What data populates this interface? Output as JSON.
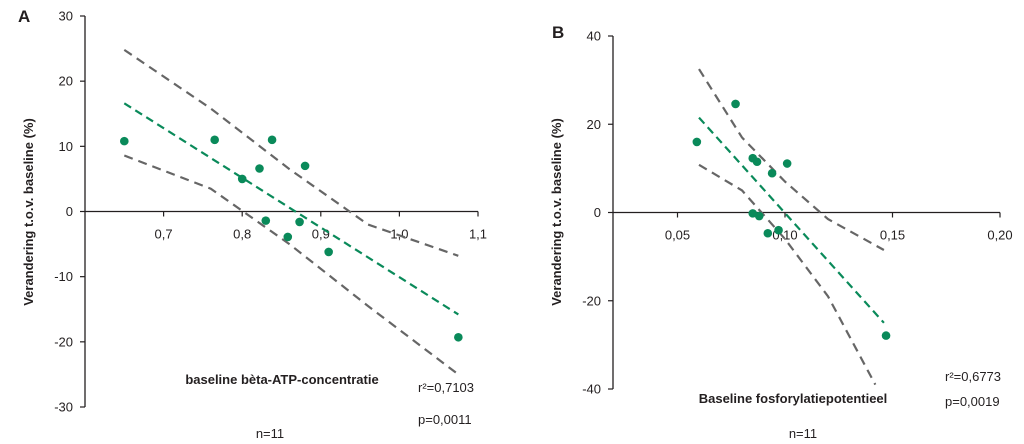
{
  "colors": {
    "point": "#0a8a5a",
    "fit": "#0a8a5a",
    "ci": "#666666",
    "axis": "#231f20"
  },
  "chart_data": [
    {
      "type": "scatter",
      "panel": "A",
      "ylabel": "Verandering t.o.v. baseline (%)",
      "xlabel": "baseline bèta-ATP-concentratie",
      "r2_label": "r²=0,7103",
      "p_label": "p=0,0011",
      "n_label": "n=11",
      "xlim": [
        0.6,
        1.1
      ],
      "ylim": [
        -30,
        30
      ],
      "x_ticks": [
        "0,7",
        "0,8",
        "0,9",
        "1,0",
        "1,1"
      ],
      "x_tick_values": [
        0.7,
        0.8,
        0.9,
        1.0,
        1.1
      ],
      "y_ticks": [
        "30",
        "20",
        "10",
        "0",
        "-10",
        "-20",
        "-30"
      ],
      "y_tick_values": [
        30,
        20,
        10,
        0,
        -10,
        -20,
        -30
      ],
      "points": [
        {
          "x": 0.65,
          "y": 10.8
        },
        {
          "x": 0.765,
          "y": 11.0
        },
        {
          "x": 0.8,
          "y": 5.0
        },
        {
          "x": 0.822,
          "y": 6.6
        },
        {
          "x": 0.838,
          "y": 11.0
        },
        {
          "x": 0.83,
          "y": -1.4
        },
        {
          "x": 0.858,
          "y": -3.9
        },
        {
          "x": 0.873,
          "y": -1.6
        },
        {
          "x": 0.88,
          "y": 7.0
        },
        {
          "x": 0.91,
          "y": -6.2
        },
        {
          "x": 1.075,
          "y": -19.3
        }
      ],
      "fit": [
        {
          "x": 0.65,
          "y": 16.6
        },
        {
          "x": 1.075,
          "y": -15.8
        }
      ],
      "ci_upper": [
        {
          "x": 0.65,
          "y": 24.8
        },
        {
          "x": 0.76,
          "y": 15.8
        },
        {
          "x": 0.86,
          "y": 6.5
        },
        {
          "x": 0.96,
          "y": -2.0
        },
        {
          "x": 1.075,
          "y": -6.8
        }
      ],
      "ci_lower": [
        {
          "x": 0.65,
          "y": 8.6
        },
        {
          "x": 0.76,
          "y": 3.5
        },
        {
          "x": 0.86,
          "y": -5.0
        },
        {
          "x": 0.96,
          "y": -14.5
        },
        {
          "x": 1.075,
          "y": -25.0
        }
      ]
    },
    {
      "type": "scatter",
      "panel": "B",
      "ylabel": "Verandering t.o.v. baseline (%)",
      "xlabel": "Baseline fosforylatiepotentieel",
      "r2_label": "r²=0,6773",
      "p_label": "p=0,0019",
      "n_label": "n=11",
      "xlim": [
        0.02,
        0.2
      ],
      "ylim": [
        -40,
        40
      ],
      "x_ticks": [
        "0,05",
        "0,10",
        "0,15",
        "0,20"
      ],
      "x_tick_values": [
        0.05,
        0.1,
        0.15,
        0.2
      ],
      "y_ticks": [
        "40",
        "20",
        "0",
        "-20",
        "-40"
      ],
      "y_tick_values": [
        40,
        20,
        0,
        -20,
        -40
      ],
      "points": [
        {
          "x": 0.059,
          "y": 16.0
        },
        {
          "x": 0.077,
          "y": 24.6
        },
        {
          "x": 0.085,
          "y": 12.3
        },
        {
          "x": 0.087,
          "y": 11.5
        },
        {
          "x": 0.094,
          "y": 8.9
        },
        {
          "x": 0.101,
          "y": 11.1
        },
        {
          "x": 0.085,
          "y": -0.2
        },
        {
          "x": 0.088,
          "y": -0.8
        },
        {
          "x": 0.092,
          "y": -4.7
        },
        {
          "x": 0.097,
          "y": -4.0
        },
        {
          "x": 0.147,
          "y": -27.9
        }
      ],
      "fit": [
        {
          "x": 0.06,
          "y": 21.5
        },
        {
          "x": 0.146,
          "y": -25.0
        }
      ],
      "ci_upper": [
        {
          "x": 0.06,
          "y": 32.5
        },
        {
          "x": 0.08,
          "y": 17.0
        },
        {
          "x": 0.1,
          "y": 7.0
        },
        {
          "x": 0.12,
          "y": -1.5
        },
        {
          "x": 0.146,
          "y": -8.5
        }
      ],
      "ci_lower": [
        {
          "x": 0.06,
          "y": 10.8
        },
        {
          "x": 0.08,
          "y": 5.0
        },
        {
          "x": 0.1,
          "y": -6.0
        },
        {
          "x": 0.12,
          "y": -19.0
        },
        {
          "x": 0.142,
          "y": -39.0
        }
      ]
    }
  ]
}
